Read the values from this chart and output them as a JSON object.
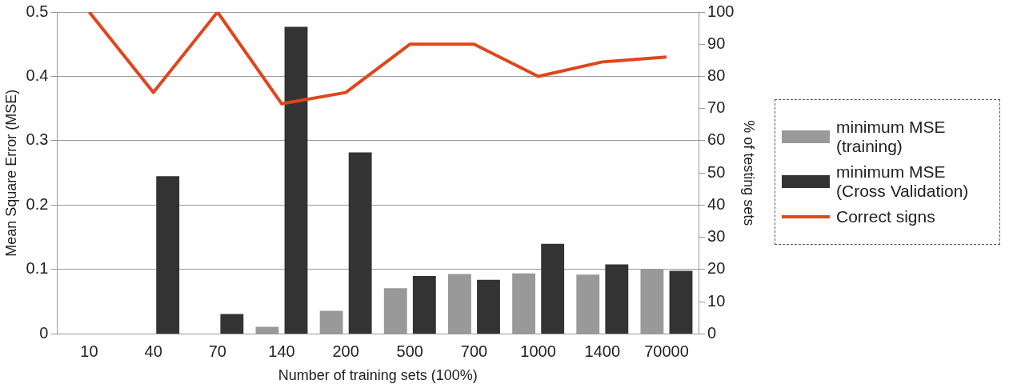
{
  "chart_data": {
    "type": "bar",
    "xlabel": "Number of training sets (100%)",
    "ylabel": "Mean Square Error (MSE)",
    "y2label": "% of testing sets",
    "categories": [
      "10",
      "40",
      "70",
      "140",
      "200",
      "500",
      "700",
      "1000",
      "1400",
      "70000"
    ],
    "series": [
      {
        "name": "minimum MSE (training)",
        "color": "#999999",
        "values": [
          0,
          0,
          0,
          0.011,
          0.036,
          0.071,
          0.093,
          0.094,
          0.092,
          0.101
        ]
      },
      {
        "name": "minimum MSE (Cross Validation)",
        "color": "#333333",
        "values": [
          0,
          0.245,
          0.031,
          0.477,
          0.282,
          0.09,
          0.084,
          0.14,
          0.108,
          0.098
        ]
      },
      {
        "name": "Correct signs",
        "type": "line",
        "axis": "y2",
        "color": "#e0461b",
        "values": [
          100,
          75,
          100,
          71.5,
          75,
          90,
          90,
          80,
          84.5,
          86
        ]
      }
    ],
    "ylim": [
      0,
      0.5
    ],
    "yticks": [
      0,
      0.1,
      0.2,
      0.3,
      0.4,
      0.5
    ],
    "y2lim": [
      0,
      100
    ],
    "y2ticks": [
      0,
      10,
      20,
      30,
      40,
      50,
      60,
      70,
      80,
      90,
      100
    ],
    "grid": "y",
    "legend": "right",
    "marker": "none",
    "line_style": "solid"
  }
}
